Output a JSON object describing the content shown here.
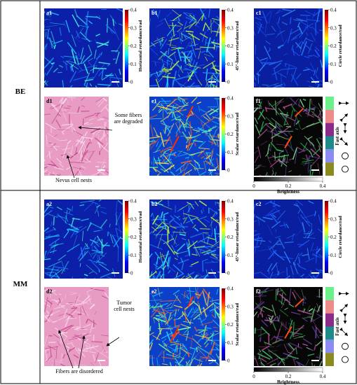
{
  "groups": [
    {
      "name": "BE",
      "panels": [
        {
          "label": "a1",
          "colorbar_label": "Horizontal retardance/rad",
          "colorbar_ticks": [
            0,
            0.1,
            0.2,
            0.3,
            0.4
          ]
        },
        {
          "label": "b1",
          "colorbar_label": "45°-linear retardance/rad",
          "colorbar_ticks": [
            0,
            0.1,
            0.2,
            0.3,
            0.4
          ]
        },
        {
          "label": "c1",
          "colorbar_label": "Circle retardance/rad",
          "colorbar_ticks": [
            0,
            0.1,
            0.2,
            0.3,
            0.4
          ]
        },
        {
          "label": "d1",
          "annotations": [
            "Some fibers are degraded",
            "Nevus cell nests"
          ]
        },
        {
          "label": "e1",
          "colorbar_label": "Scalar retardance/rad",
          "colorbar_ticks": [
            0,
            0.1,
            0.2,
            0.3,
            0.4
          ]
        },
        {
          "label": "f1",
          "fast_axis_label": "Fast axis",
          "brightness_label": "Brightness",
          "brightness_ticks": [
            0,
            0.2,
            0.4
          ]
        }
      ]
    },
    {
      "name": "MM",
      "panels": [
        {
          "label": "a2",
          "colorbar_label": "Horizontal retardance/rad",
          "colorbar_ticks": [
            0,
            0.1,
            0.2,
            0.3,
            0.4
          ]
        },
        {
          "label": "b2",
          "colorbar_label": "45°-linear retardance/rad",
          "colorbar_ticks": [
            0,
            0.1,
            0.2,
            0.3,
            0.4
          ]
        },
        {
          "label": "c2",
          "colorbar_label": "Circle retardance/rad",
          "colorbar_ticks": [
            0,
            0.1,
            0.2,
            0.3,
            0.4
          ]
        },
        {
          "label": "d2",
          "annotations": [
            "Tumor cell nests",
            "Fibers are disordered"
          ]
        },
        {
          "label": "e2",
          "colorbar_label": "Scalar retardance/rad",
          "colorbar_ticks": [
            0,
            0.1,
            0.2,
            0.3,
            0.4
          ]
        },
        {
          "label": "f2",
          "fast_axis_label": "Fast axis",
          "brightness_label": "Brightness",
          "brightness_ticks": [
            0,
            0.2,
            0.4
          ]
        }
      ]
    }
  ]
}
